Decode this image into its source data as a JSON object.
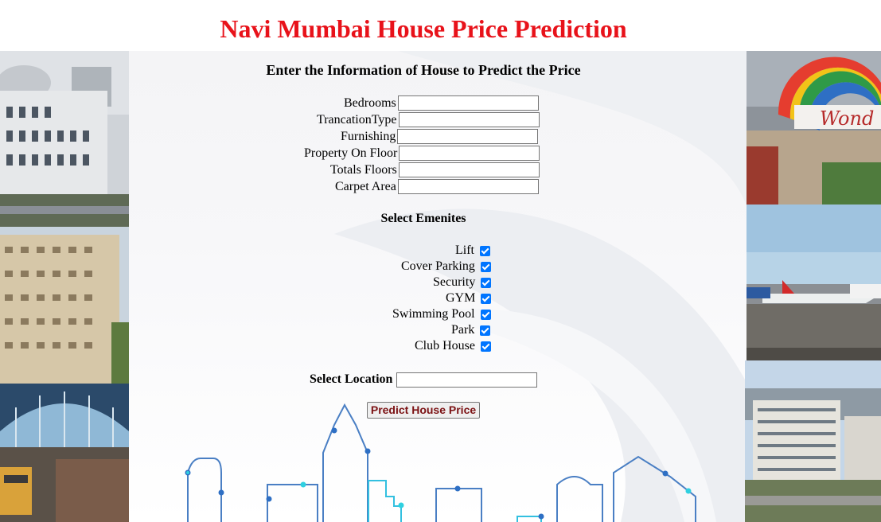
{
  "title": "Navi Mumbai House Price Prediction",
  "subtitle": "Enter the Information of House to Predict the Price",
  "fields": [
    {
      "label": "Bedrooms",
      "value": ""
    },
    {
      "label": "TrancationType",
      "value": ""
    },
    {
      "label": "Furnishing",
      "value": ""
    },
    {
      "label": "Property On Floor",
      "value": ""
    },
    {
      "label": "Totals Floors",
      "value": ""
    },
    {
      "label": "Carpet Area",
      "value": ""
    }
  ],
  "amenities_heading": "Select Emenites",
  "amenities": [
    {
      "label": "Lift",
      "checked": true
    },
    {
      "label": "Cover Parking",
      "checked": true
    },
    {
      "label": "Security",
      "checked": true
    },
    {
      "label": "GYM",
      "checked": true
    },
    {
      "label": "Swimming Pool",
      "checked": true
    },
    {
      "label": "Park",
      "checked": true
    },
    {
      "label": "Club House",
      "checked": true
    }
  ],
  "location": {
    "label": "Select Location",
    "value": ""
  },
  "predict_button": "Predict House Price",
  "colors": {
    "title": "#e8121a",
    "checkbox": "#0075ff",
    "button_text": "#7b1113",
    "skyline": "#4a7fc4",
    "skyline_dot": "#2fa8d8"
  },
  "photo_sign_text": "Wond"
}
